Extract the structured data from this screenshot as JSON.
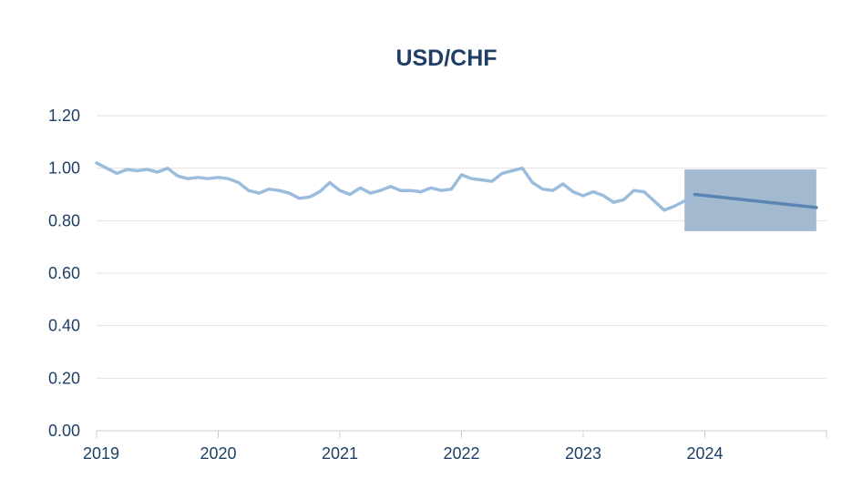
{
  "chart_data": {
    "type": "line",
    "title": "USD/CHF",
    "xlabel": "",
    "ylabel": "",
    "ylim": [
      0,
      1.2
    ],
    "yticks": [
      "0.00",
      "0.20",
      "0.40",
      "0.60",
      "0.80",
      "1.00",
      "1.20"
    ],
    "xlim": [
      "2019-01",
      "2025-01"
    ],
    "xticks": [
      {
        "label": "2019",
        "date": "2019-01"
      },
      {
        "label": "2020",
        "date": "2020-01"
      },
      {
        "label": "2021",
        "date": "2021-01"
      },
      {
        "label": "2022",
        "date": "2022-01"
      },
      {
        "label": "2023",
        "date": "2023-01"
      },
      {
        "label": "2024",
        "date": "2024-01"
      }
    ],
    "grid": true,
    "colors": {
      "historical": "#9bbcdd",
      "forecast": "#5b84b4",
      "forecast_band": "#a3b9d0",
      "text": "#1f3f66",
      "grid": "#e3e3e3",
      "axis": "#cccccc"
    },
    "series": [
      {
        "role": "historical",
        "x": [
          "2019-01",
          "2019-02",
          "2019-03",
          "2019-04",
          "2019-05",
          "2019-06",
          "2019-07",
          "2019-08",
          "2019-09",
          "2019-10",
          "2019-11",
          "2019-12",
          "2020-01",
          "2020-02",
          "2020-03",
          "2020-04",
          "2020-05",
          "2020-06",
          "2020-07",
          "2020-08",
          "2020-09",
          "2020-10",
          "2020-11",
          "2020-12",
          "2021-01",
          "2021-02",
          "2021-03",
          "2021-04",
          "2021-05",
          "2021-06",
          "2021-07",
          "2021-08",
          "2021-09",
          "2021-10",
          "2021-11",
          "2021-12",
          "2022-01",
          "2022-02",
          "2022-03",
          "2022-04",
          "2022-05",
          "2022-06",
          "2022-07",
          "2022-08",
          "2022-09",
          "2022-10",
          "2022-11",
          "2022-12",
          "2023-01",
          "2023-02",
          "2023-03",
          "2023-04",
          "2023-05",
          "2023-06",
          "2023-07",
          "2023-08",
          "2023-09",
          "2023-10",
          "2023-11",
          "2023-12"
        ],
        "values": [
          1.02,
          1.0,
          0.98,
          0.995,
          0.99,
          0.995,
          0.985,
          1.0,
          0.97,
          0.96,
          0.965,
          0.96,
          0.965,
          0.96,
          0.945,
          0.915,
          0.905,
          0.92,
          0.915,
          0.905,
          0.885,
          0.89,
          0.91,
          0.945,
          0.915,
          0.9,
          0.925,
          0.905,
          0.915,
          0.93,
          0.915,
          0.915,
          0.91,
          0.925,
          0.915,
          0.92,
          0.975,
          0.96,
          0.955,
          0.95,
          0.98,
          0.99,
          1.0,
          0.945,
          0.92,
          0.915,
          0.94,
          0.91,
          0.895,
          0.91,
          0.895,
          0.87,
          0.88,
          0.915,
          0.91,
          0.875,
          0.84,
          0.855,
          0.875,
          0.9
        ]
      },
      {
        "role": "forecast",
        "x": [
          "2023-12",
          "2024-12"
        ],
        "values": [
          0.9,
          0.85
        ]
      }
    ],
    "forecast_band": {
      "x": [
        "2023-11",
        "2024-12"
      ],
      "y": [
        0.76,
        0.995
      ]
    }
  }
}
